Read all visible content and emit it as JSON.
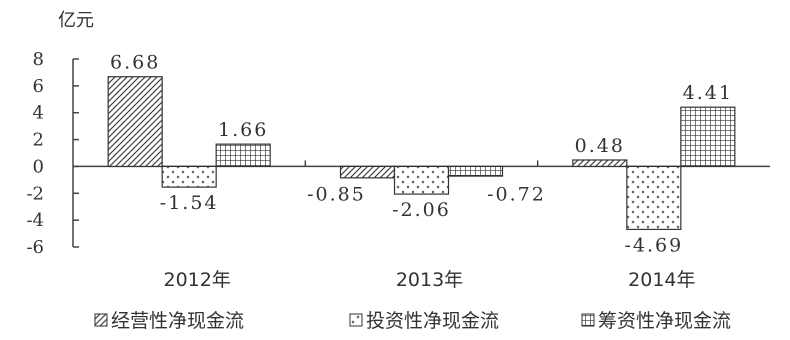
{
  "chart_data": {
    "type": "bar",
    "title": "",
    "ylabel": "",
    "unit": "亿元",
    "ylim": [
      -6,
      8
    ],
    "yticks": [
      8,
      6,
      4,
      2,
      0,
      -2,
      -4,
      -6
    ],
    "categories": [
      "2012年",
      "2013年",
      "2014年"
    ],
    "series": [
      {
        "name": "经营性净现金流",
        "pattern": "diagonal",
        "values": [
          6.68,
          -0.85,
          0.48
        ],
        "labels": [
          "6.68",
          "-0.85",
          "0.48"
        ]
      },
      {
        "name": "投资性净现金流",
        "pattern": "dots",
        "values": [
          -1.54,
          -2.06,
          -4.69
        ],
        "labels": [
          "-1.54",
          "-2.06",
          "-4.69"
        ]
      },
      {
        "name": "筹资性净现金流",
        "pattern": "grid",
        "values": [
          1.66,
          -0.72,
          4.41
        ],
        "labels": [
          "1.66",
          "-0.72",
          "4.41"
        ]
      }
    ],
    "grid": false,
    "legend": "bottom"
  }
}
